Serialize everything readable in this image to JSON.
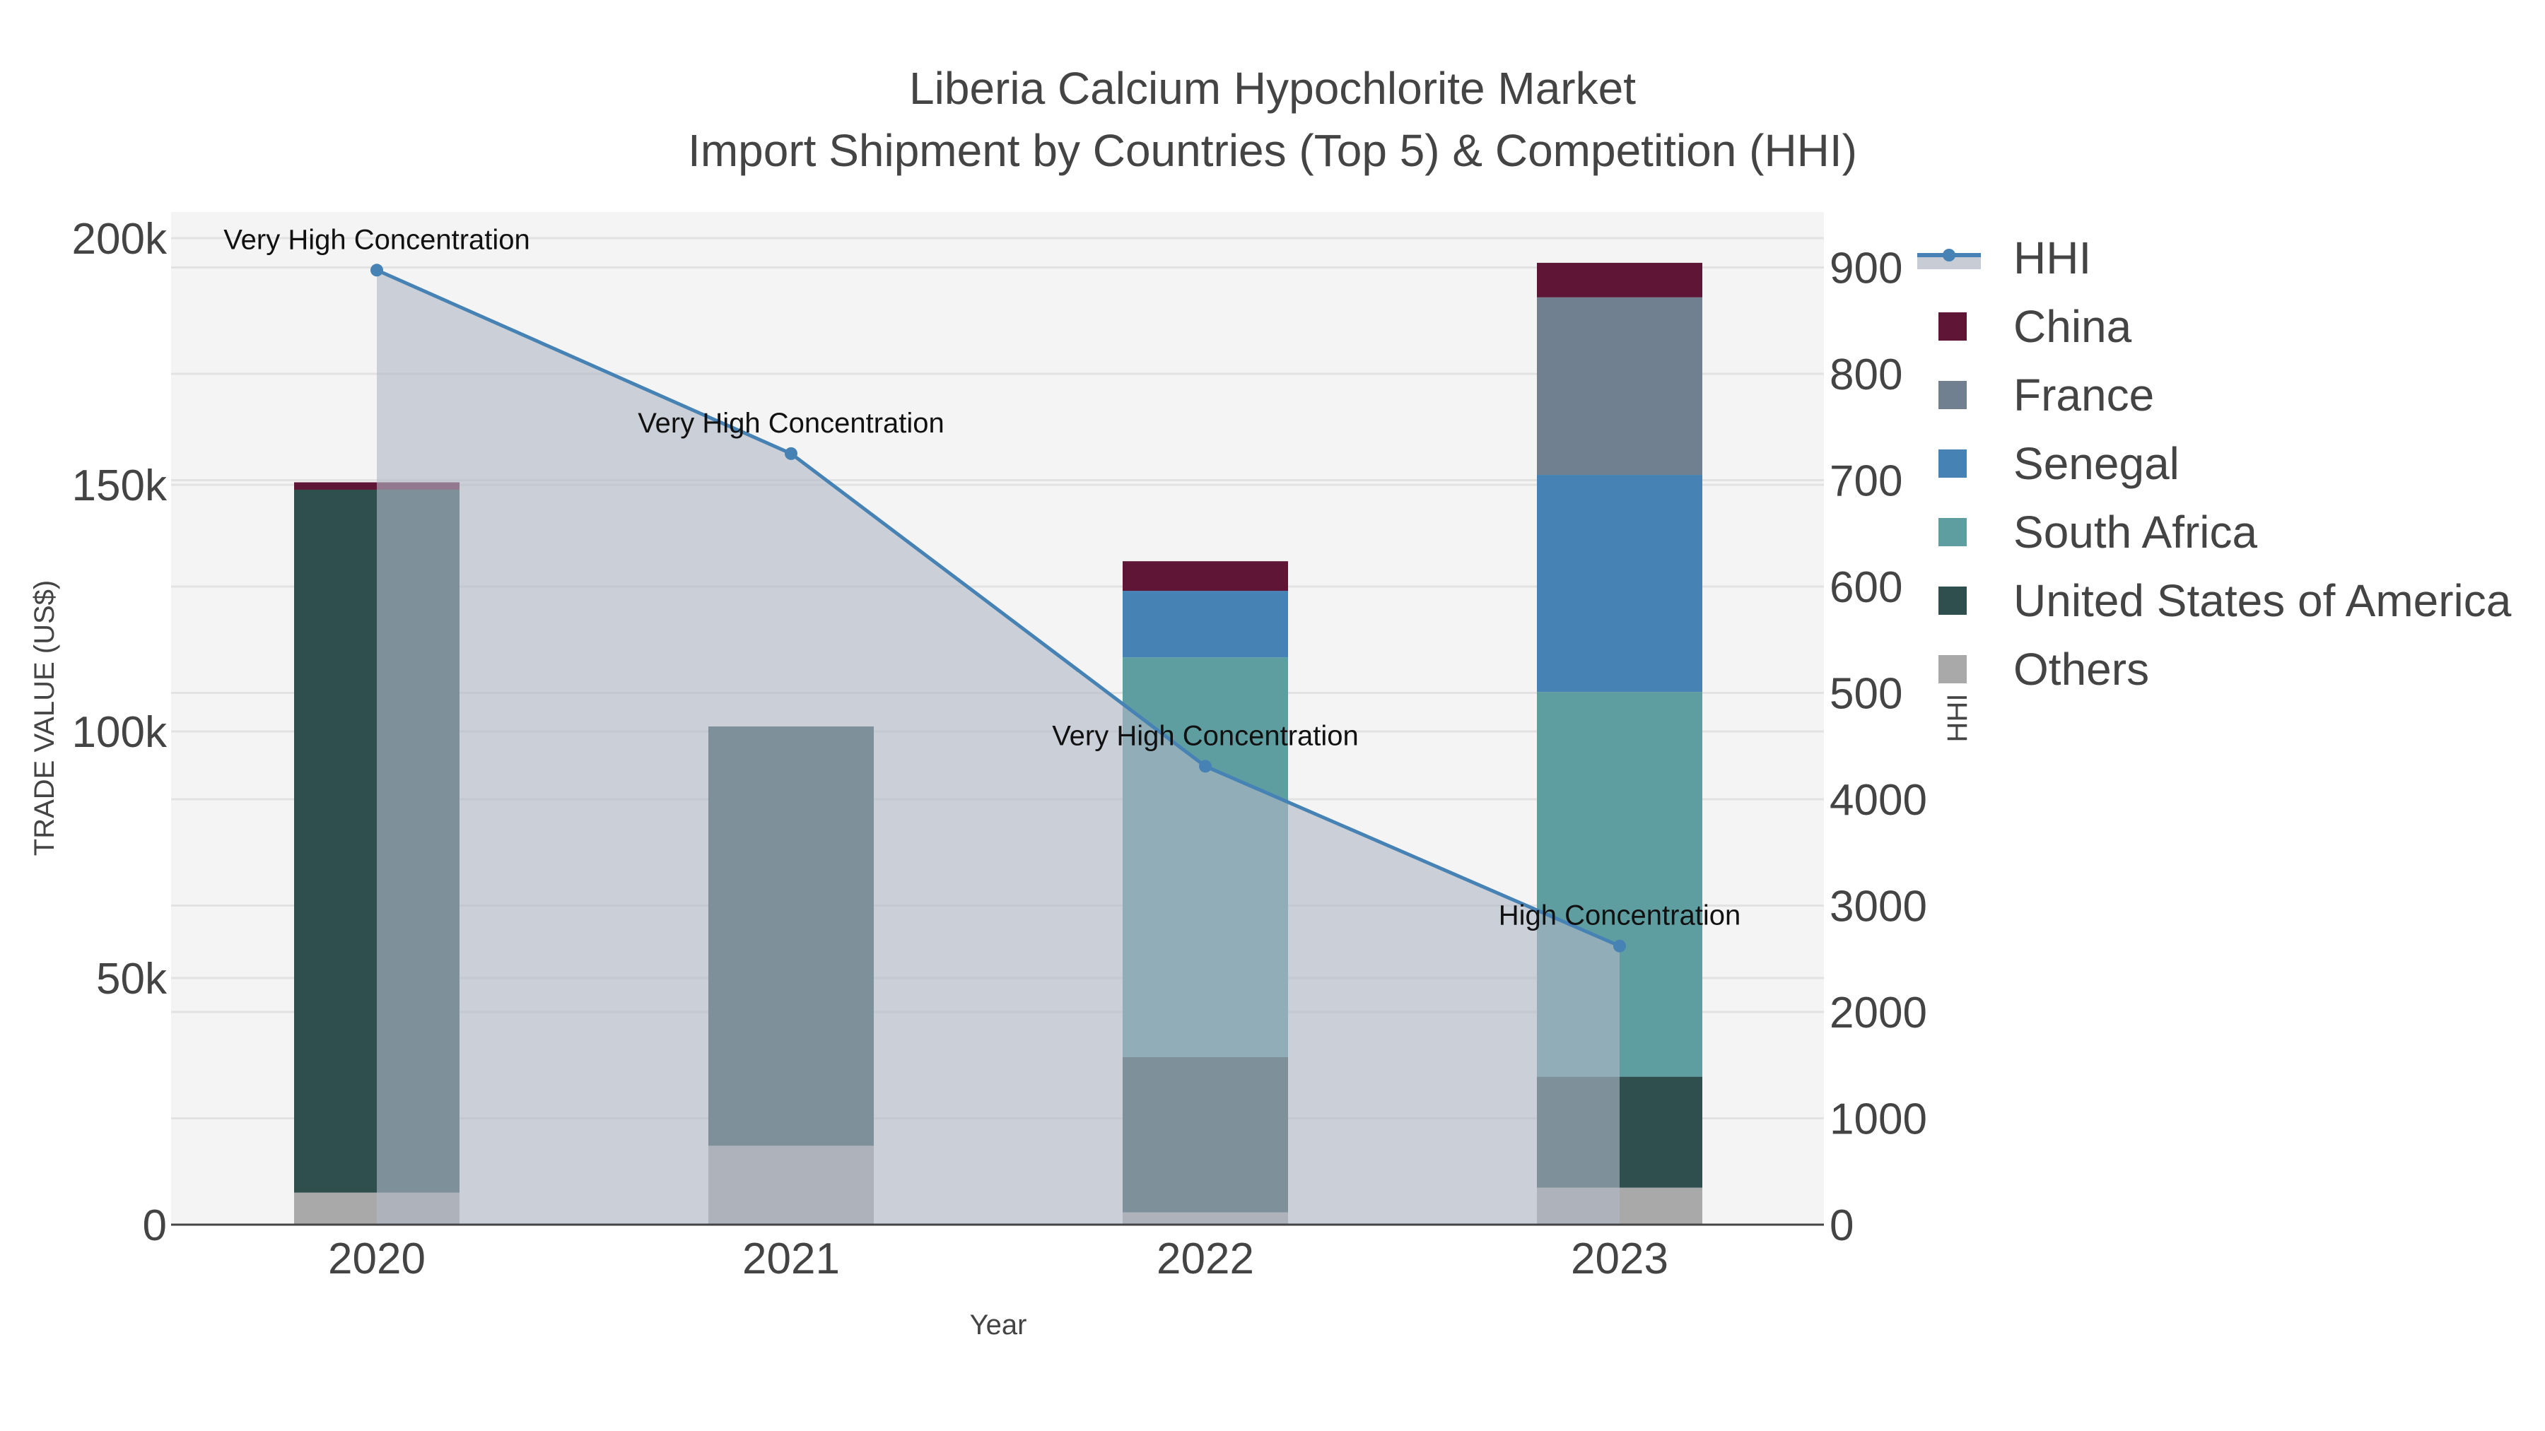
{
  "title": {
    "line1": "Liberia Calcium Hypochlorite Market",
    "line2": "Import Shipment by Countries (Top 5) & Competition (HHI)"
  },
  "axes": {
    "x_label": "Year",
    "y_left_label": "TRADE VALUE (US$)",
    "y_right_label": "HHI",
    "x_ticks": [
      "2020",
      "2021",
      "2022",
      "2023"
    ],
    "y_left_ticks": [
      "0",
      "50k",
      "100k",
      "150k",
      "200k"
    ],
    "y_right_ticks": [
      "0",
      "1000",
      "2000",
      "3000",
      "4000",
      "500",
      "600",
      "700",
      "800",
      "900"
    ]
  },
  "legend": [
    {
      "name": "HHI",
      "color": "#4682b4",
      "type": "line"
    },
    {
      "name": "China",
      "color": "#5f1535",
      "type": "bar"
    },
    {
      "name": "France",
      "color": "#708090",
      "type": "bar"
    },
    {
      "name": "Senegal",
      "color": "#4682b4",
      "type": "bar"
    },
    {
      "name": "South Africa",
      "color": "#5f9ea0",
      "type": "bar"
    },
    {
      "name": "United States of America",
      "color": "#2f4f4f",
      "type": "bar"
    },
    {
      "name": "Others",
      "color": "#a9a9a9",
      "type": "bar"
    }
  ],
  "chart_data": {
    "type": "bar",
    "title": "Liberia Calcium Hypochlorite Market — Import Shipment by Countries (Top 5) & Competition (HHI)",
    "xlabel": "Year",
    "ylabel": "TRADE VALUE (US$)",
    "y2label": "HHI",
    "barmode": "stack",
    "categories": [
      "2020",
      "2021",
      "2022",
      "2023"
    ],
    "ylim": [
      0,
      200000
    ],
    "y2lim": [
      0,
      9000
    ],
    "grid": true,
    "legend_position": "right",
    "series": [
      {
        "name": "Others",
        "color": "#a9a9a9",
        "values": [
          6500,
          16000,
          2500,
          7500
        ]
      },
      {
        "name": "United States of America",
        "color": "#2f4f4f",
        "values": [
          142500,
          85000,
          31500,
          22500
        ]
      },
      {
        "name": "South Africa",
        "color": "#5f9ea0",
        "values": [
          0,
          0,
          81000,
          78000
        ]
      },
      {
        "name": "Senegal",
        "color": "#4682b4",
        "values": [
          0,
          0,
          13500,
          44000
        ]
      },
      {
        "name": "France",
        "color": "#708090",
        "values": [
          0,
          0,
          0,
          36000
        ]
      },
      {
        "name": "China",
        "color": "#5f1535",
        "values": [
          1500,
          0,
          6000,
          7000
        ]
      }
    ],
    "line_series": {
      "name": "HHI",
      "axis": "right",
      "color": "#4682b4",
      "fill": "tozeroy",
      "values": [
        8975,
        7250,
        4310,
        2620
      ],
      "annotations": [
        "Very High Concentration",
        "Very High Concentration",
        "Very High Concentration",
        "High Concentration"
      ]
    }
  }
}
